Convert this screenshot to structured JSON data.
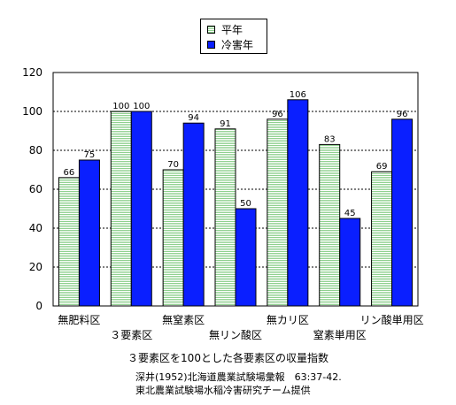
{
  "chart_data": {
    "type": "bar",
    "categories": [
      "無肥料区",
      "３要素区",
      "無窒素区",
      "無リン酸区",
      "無カリ区",
      "窒素単用区",
      "リン酸単用区"
    ],
    "series": [
      {
        "name": "平年",
        "values": [
          66,
          100,
          70,
          91,
          96,
          83,
          69
        ],
        "pattern": "striped",
        "color": "#8fd08f"
      },
      {
        "name": "冷害年",
        "values": [
          75,
          100,
          94,
          50,
          106,
          45,
          96
        ],
        "color": "#0a1fff"
      }
    ],
    "yticks": [
      0,
      20,
      40,
      60,
      80,
      100,
      120
    ],
    "ylim": [
      0,
      120
    ],
    "grid": "dashed horizontal",
    "legend": "top-center"
  },
  "caption": "３要素区を100とした各要素区の収量指数",
  "source_line_1": "深井(1952)北海道農業試験場彙報　63:37-42.",
  "source_line_2": "東北農業試験場水稲冷害研究チーム提供"
}
